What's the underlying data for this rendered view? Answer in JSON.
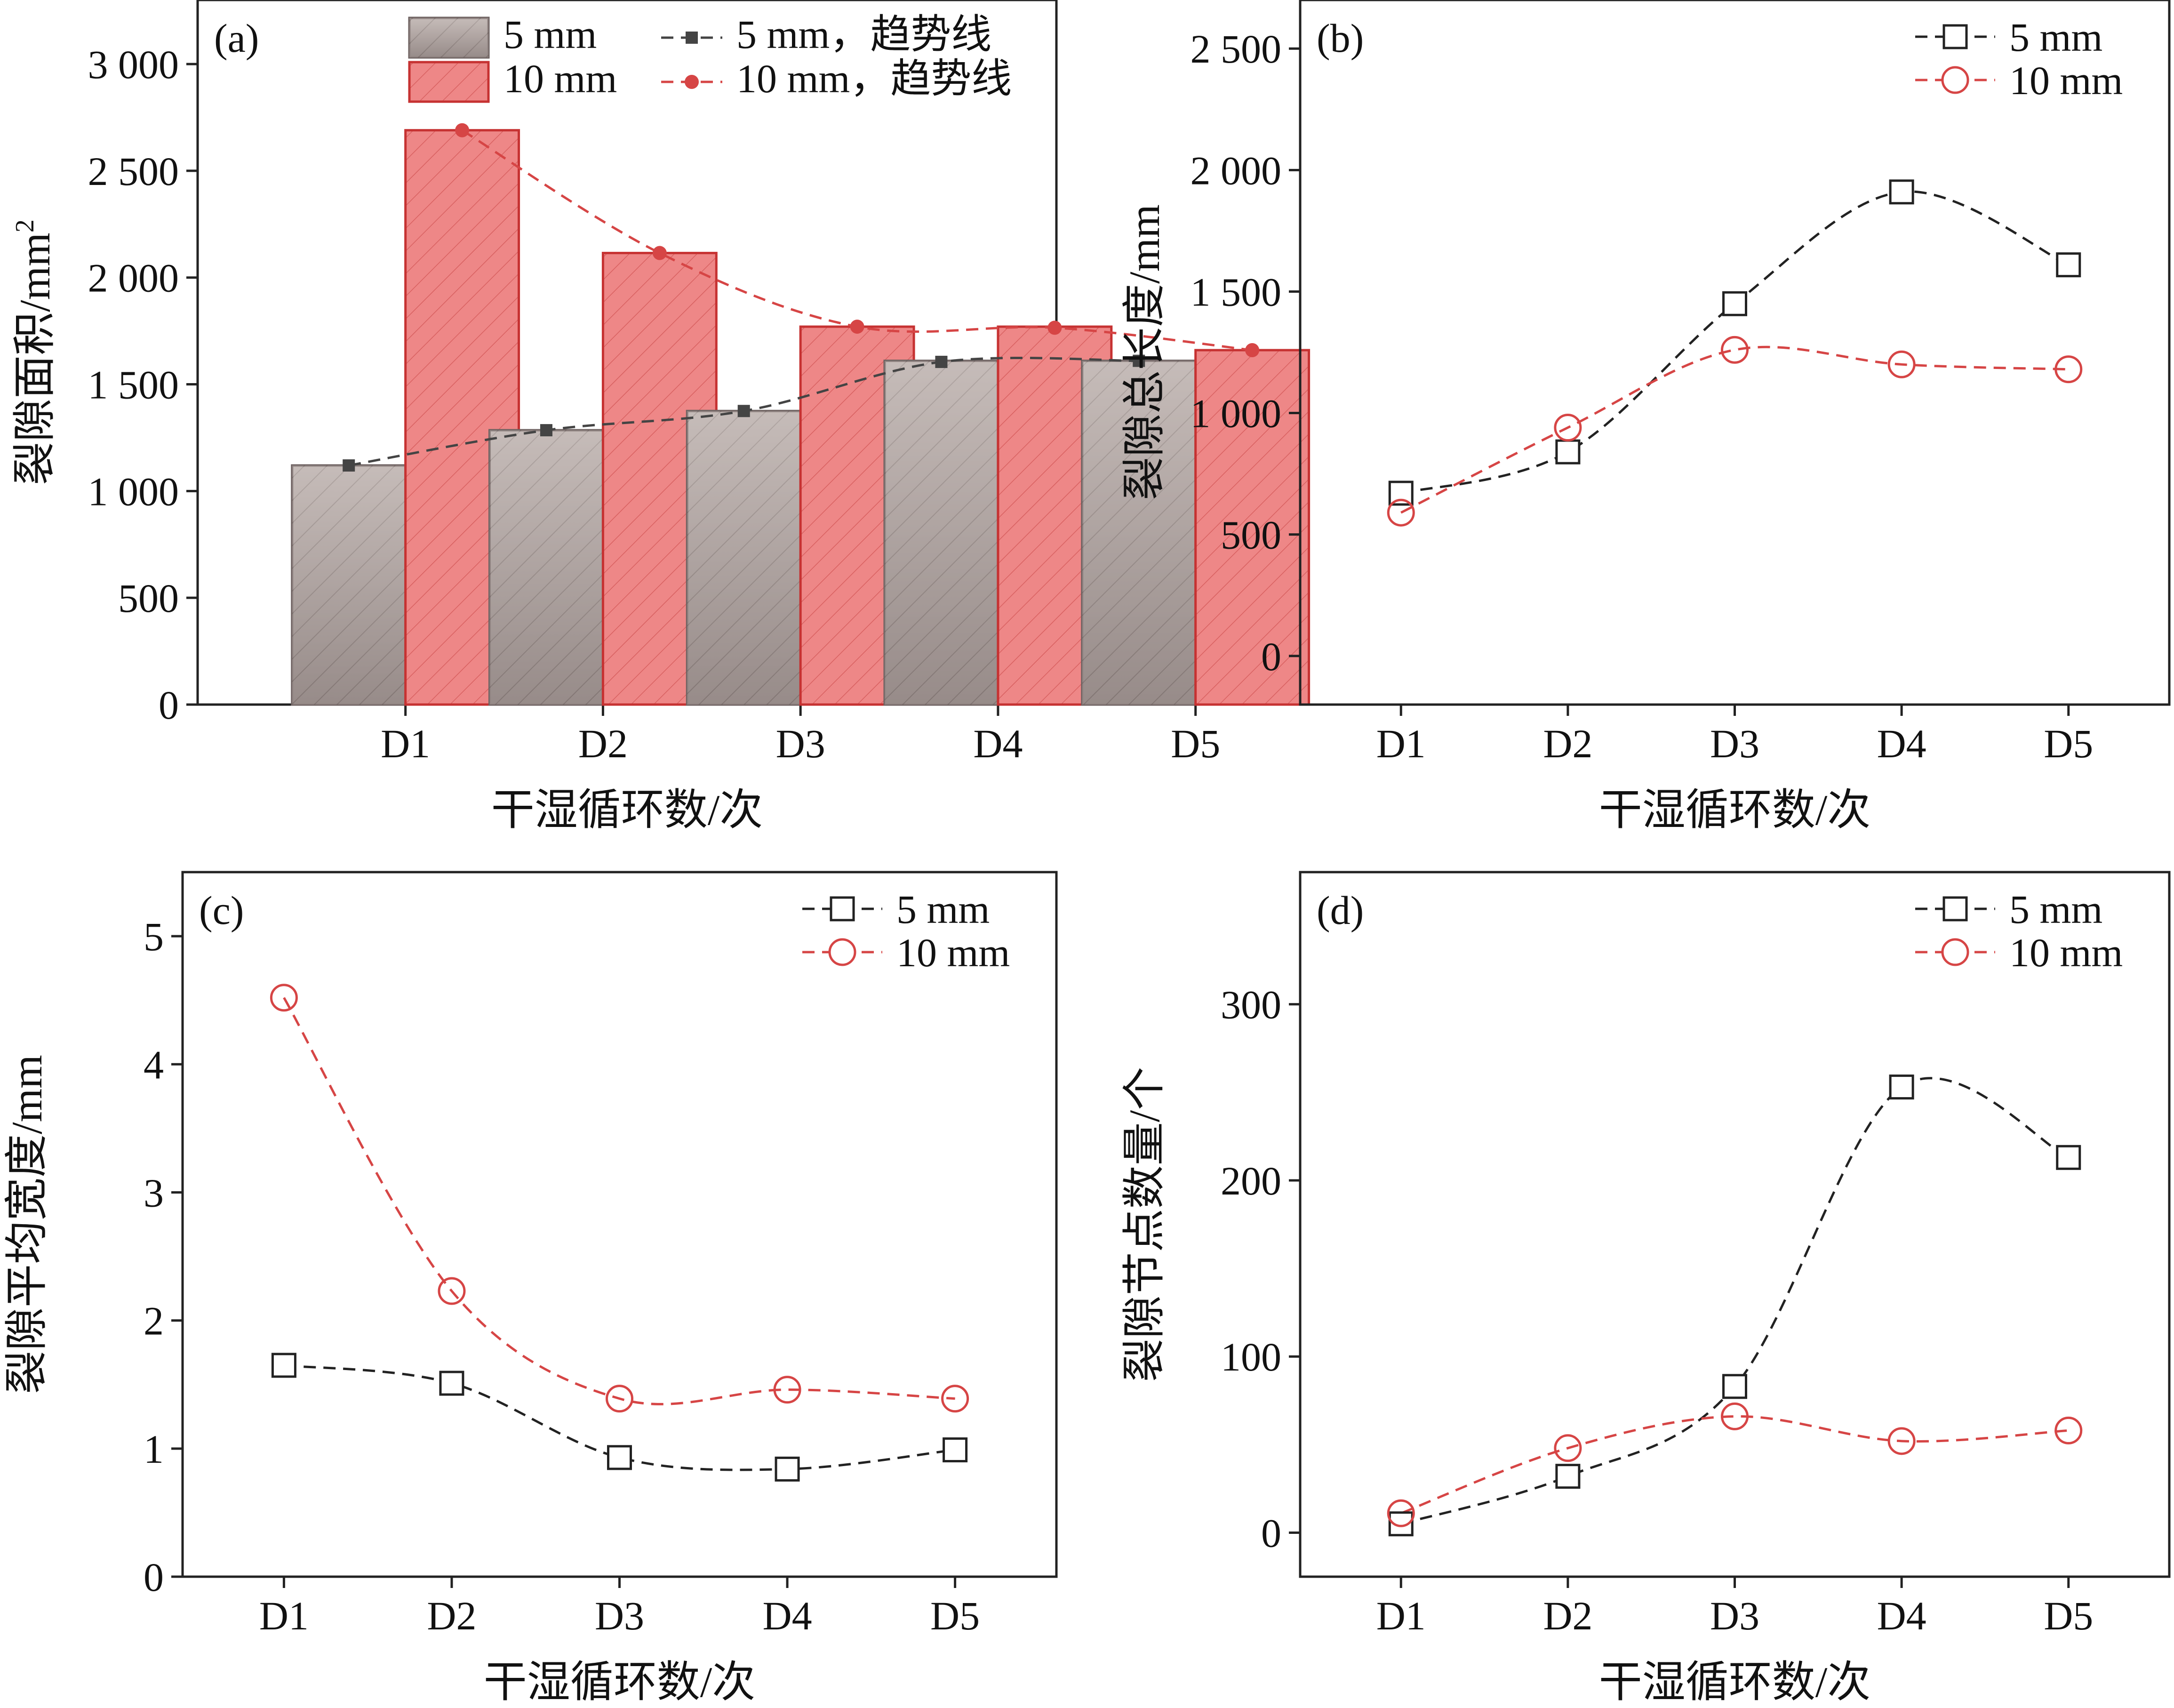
{
  "colors": {
    "black": "#222222",
    "red": "#d64545",
    "bar_5mm_fill": "#b9aeab",
    "bar_5mm_edge": "#6e6261",
    "bar_10mm_fill": "#ee8787",
    "bar_10mm_edge": "#c63232",
    "hatch": "#8a7e7b"
  },
  "chart_data": [
    {
      "id": "a",
      "type": "bar",
      "panel_label": "(a)",
      "xlabel": "干湿循环数/次",
      "ylabel": "裂隙面积/mm",
      "ylabel_sup": "2",
      "categories": [
        "D1",
        "D2",
        "D3",
        "D4",
        "D5"
      ],
      "ylim": [
        0,
        3300
      ],
      "yticks": [
        0,
        500,
        1000,
        1500,
        2000,
        2500,
        3000
      ],
      "ytick_labels": [
        "0",
        "500",
        "1 000",
        "1 500",
        "2 000",
        "2 500",
        "3 000"
      ],
      "legend": {
        "bar_5mm": "5 mm",
        "bar_10mm": "10 mm",
        "trend_5mm": "5 mm，趋势线",
        "trend_10mm": "10 mm，趋势线"
      },
      "series": [
        {
          "name": "5 mm",
          "values": [
            1120,
            1285,
            1375,
            1610,
            1610
          ]
        },
        {
          "name": "10 mm",
          "values": [
            2690,
            2115,
            1770,
            1770,
            1660
          ]
        }
      ],
      "trend_series": [
        {
          "name": "5 mm，趋势线",
          "values": [
            1120,
            1285,
            1375,
            1605,
            1610
          ]
        },
        {
          "name": "10 mm，趋势线",
          "values": [
            2690,
            2115,
            1770,
            1765,
            1660
          ]
        }
      ]
    },
    {
      "id": "b",
      "type": "scatter",
      "panel_label": "(b)",
      "xlabel": "干湿循环数/次",
      "ylabel": "裂隙总长度/mm",
      "categories": [
        "D1",
        "D2",
        "D3",
        "D4",
        "D5"
      ],
      "ylim": [
        -200,
        2700
      ],
      "yticks": [
        0,
        500,
        1000,
        1500,
        2000,
        2500
      ],
      "ytick_labels": [
        "0",
        "500",
        "1 000",
        "1 500",
        "2 000",
        "2 500"
      ],
      "legend": {
        "s5": "5 mm",
        "s10": "10 mm"
      },
      "series": [
        {
          "name": "5 mm",
          "values": [
            670,
            840,
            1450,
            1910,
            1610
          ]
        },
        {
          "name": "10 mm",
          "values": [
            590,
            940,
            1260,
            1200,
            1180
          ]
        }
      ]
    },
    {
      "id": "c",
      "type": "scatter",
      "panel_label": "(c)",
      "xlabel": "干湿循环数/次",
      "ylabel": "裂隙平均宽度/mm",
      "categories": [
        "D1",
        "D2",
        "D3",
        "D4",
        "D5"
      ],
      "ylim": [
        0,
        5.5
      ],
      "yticks": [
        0,
        1,
        2,
        3,
        4,
        5
      ],
      "ytick_labels": [
        "0",
        "1",
        "2",
        "3",
        "4",
        "5"
      ],
      "legend": {
        "s5": "5 mm",
        "s10": "10 mm"
      },
      "series": [
        {
          "name": "5 mm",
          "values": [
            1.65,
            1.51,
            0.93,
            0.84,
            0.99
          ]
        },
        {
          "name": "10 mm",
          "values": [
            4.52,
            2.23,
            1.39,
            1.46,
            1.39
          ]
        }
      ]
    },
    {
      "id": "d",
      "type": "scatter",
      "panel_label": "(d)",
      "xlabel": "干湿循环数/次",
      "ylabel": "裂隙节点数量/个",
      "categories": [
        "D1",
        "D2",
        "D3",
        "D4",
        "D5"
      ],
      "ylim": [
        -25,
        375
      ],
      "yticks": [
        0,
        100,
        200,
        300
      ],
      "ytick_labels": [
        "0",
        "100",
        "200",
        "300"
      ],
      "legend": {
        "s5": "5 mm",
        "s10": "10 mm"
      },
      "series": [
        {
          "name": "5 mm",
          "values": [
            5,
            32,
            83,
            253,
            213
          ]
        },
        {
          "name": "10 mm",
          "values": [
            11,
            48,
            66,
            52,
            58
          ]
        }
      ]
    }
  ]
}
